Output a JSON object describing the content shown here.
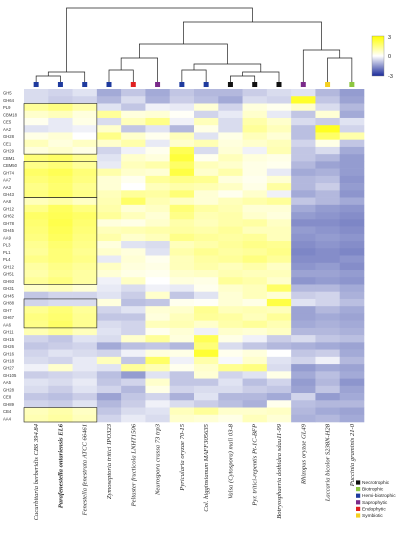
{
  "chart_data": {
    "type": "heatmap",
    "title": "",
    "xlabel": "",
    "ylabel": "",
    "color_scale": {
      "min": -3,
      "max": 3,
      "low_color": "#1a2a9a",
      "mid_color": "#ffffff",
      "high_color": "#ffff00"
    },
    "colorbar_ticks": [
      "3",
      "0",
      "-3"
    ],
    "rows": [
      "GH5",
      "GH64",
      "PL9",
      "CBM18",
      "CE5",
      "AA2",
      "GH28",
      "CE1",
      "GH29",
      "CBM1",
      "CBM50",
      "GH74",
      "AA7",
      "AA3",
      "GH43",
      "AA8",
      "GH12",
      "GH62",
      "GH78",
      "GH45",
      "AA9",
      "PL3",
      "PL1",
      "PL4",
      "GH12",
      "GH51",
      "GH93",
      "GH31",
      "GH45",
      "GH88",
      "GH7",
      "GH67",
      "AA6",
      "GH11",
      "GH15",
      "GH26",
      "GH16",
      "GH18",
      "GH27",
      "GH105",
      "AA5",
      "GH28",
      "CE8",
      "GH89",
      "CB4",
      "AA4"
    ],
    "columns": [
      {
        "name": "Cucurbitaria berberidis CBS 394.84",
        "color": "#1e3a9e"
      },
      {
        "name": "Parafenestella ontariensis EL6",
        "color": "#1e3a9e",
        "bold": true
      },
      {
        "name": "Fenestella fenestrata ATCC 66461",
        "color": "#1e3a9e"
      },
      {
        "name": "Zymoseptoria tritici IPO323",
        "color": "#1e3a9e"
      },
      {
        "name": "Peltaster fructicola LNHT1506",
        "color": "#e02020"
      },
      {
        "name": "Neurospora crassa 73 trp3",
        "color": "#7a2a8a"
      },
      {
        "name": "Pyricularia oryzae 70-15",
        "color": "#1e3a9e"
      },
      {
        "name": "Col. higginsianum MAFF305635",
        "color": "#1e3a9e"
      },
      {
        "name": "Valsa (Cytospora) mali 03-8",
        "color": "#111111"
      },
      {
        "name": "Pyr. tritici-repentis Pt-1C-BFP",
        "color": "#111111"
      },
      {
        "name": "Botryosphaeria dothidea sdau11-99",
        "color": "#111111"
      },
      {
        "name": "Rhizopus oryzae GL49",
        "color": "#7a2a8a"
      },
      {
        "name": "Laccaria bicolor S238N-H28",
        "color": "#f5d020"
      },
      {
        "name": "Puccinia graminis 21-0",
        "color": "#8cc63f"
      }
    ],
    "values": [
      [
        -0.5,
        -0.6,
        -0.4,
        -1.2,
        -0.8,
        -1.2,
        -0.8,
        -1.0,
        -1.0,
        -0.7,
        -0.5,
        -0.4,
        -1.0,
        -1.4
      ],
      [
        -0.5,
        -0.7,
        -0.6,
        -1.0,
        -0.5,
        -1.1,
        -0.7,
        -0.9,
        -1.2,
        -0.5,
        -0.6,
        2.5,
        -0.8,
        -1.3
      ],
      [
        1.2,
        1.5,
        1.0,
        -0.4,
        -0.8,
        -0.2,
        -0.3,
        0.5,
        -0.6,
        0.4,
        0.2,
        0.6,
        -0.5,
        -1.0
      ],
      [
        0.6,
        0.8,
        0.4,
        1.2,
        0.4,
        0.5,
        0.1,
        -0.6,
        -0.3,
        0.6,
        -0.3,
        -0.8,
        0.5,
        -1.2
      ],
      [
        0.2,
        -0.3,
        0.3,
        -0.5,
        0.8,
        1.4,
        -0.2,
        0.8,
        -0.5,
        1.0,
        0.6,
        -0.5,
        -0.7,
        -0.4
      ],
      [
        -0.4,
        -0.3,
        -0.2,
        0.6,
        -0.8,
        -0.4,
        -1.0,
        0.3,
        -0.5,
        1.2,
        0.8,
        -0.9,
        2.6,
        -0.6
      ],
      [
        0.3,
        0.5,
        0.0,
        1.4,
        0.6,
        0.2,
        0.8,
        -0.4,
        0.3,
        0.8,
        0.5,
        -0.9,
        1.8,
        1.0
      ],
      [
        0.8,
        0.4,
        0.7,
        0.6,
        1.0,
        -0.3,
        0.6,
        0.9,
        0.4,
        0.6,
        0.8,
        -0.6,
        0.3,
        -0.8
      ],
      [
        0.4,
        0.6,
        0.3,
        -0.6,
        -0.2,
        0.2,
        2.0,
        -0.5,
        0.5,
        -0.2,
        0.9,
        -0.8,
        -0.5,
        -1.2
      ],
      [
        1.6,
        1.8,
        1.3,
        -0.4,
        0.6,
        0.4,
        2.3,
        0.2,
        0.8,
        0.4,
        0.3,
        -0.8,
        -1.0,
        -1.4
      ],
      [
        1.4,
        1.6,
        1.2,
        -0.3,
        0.8,
        1.0,
        1.8,
        0.8,
        0.6,
        0.3,
        0.2,
        -1.0,
        -1.3,
        -1.4
      ],
      [
        1.8,
        2.0,
        1.6,
        1.0,
        0.6,
        0.5,
        2.2,
        0.6,
        1.0,
        0.3,
        -0.3,
        -1.2,
        -1.1,
        -1.4
      ],
      [
        1.6,
        1.8,
        1.5,
        0.5,
        0.2,
        1.2,
        1.4,
        1.3,
        0.4,
        0.2,
        0.5,
        -1.0,
        -0.9,
        -1.5
      ],
      [
        1.4,
        1.7,
        1.3,
        0.5,
        0.0,
        0.8,
        1.0,
        0.9,
        0.7,
        0.3,
        1.1,
        -1.0,
        -0.7,
        -1.4
      ],
      [
        1.5,
        1.8,
        1.4,
        0.8,
        1.2,
        1.1,
        1.6,
        0.5,
        0.2,
        0.6,
        -0.2,
        -1.2,
        -1.0,
        -1.5
      ],
      [
        0.8,
        1.0,
        0.7,
        0.9,
        1.8,
        0.9,
        0.7,
        0.5,
        0.8,
        1.0,
        1.2,
        -0.8,
        -1.0,
        -1.2
      ],
      [
        1.4,
        1.9,
        1.5,
        1.0,
        0.5,
        0.7,
        1.6,
        1.1,
        0.9,
        0.5,
        0.5,
        -1.2,
        -1.4,
        -1.5
      ],
      [
        1.8,
        2.0,
        1.8,
        1.2,
        0.8,
        0.5,
        1.4,
        0.9,
        1.0,
        0.6,
        0.4,
        -1.4,
        -1.5,
        -1.6
      ],
      [
        1.7,
        2.1,
        1.7,
        0.4,
        0.3,
        0.6,
        1.0,
        0.8,
        1.0,
        1.1,
        0.7,
        -1.6,
        -1.6,
        -1.7
      ],
      [
        1.6,
        2.0,
        1.6,
        0.8,
        0.9,
        1.0,
        1.1,
        1.0,
        1.2,
        0.8,
        0.8,
        -1.4,
        -1.5,
        -1.6
      ],
      [
        1.5,
        1.9,
        1.5,
        1.0,
        0.6,
        0.8,
        1.4,
        1.2,
        1.1,
        1.2,
        0.8,
        -1.5,
        -1.4,
        -1.5
      ],
      [
        1.3,
        1.7,
        1.4,
        0.4,
        -0.4,
        -0.5,
        0.8,
        1.0,
        1.2,
        1.4,
        1.3,
        -1.6,
        -1.5,
        -1.6
      ],
      [
        1.2,
        1.6,
        1.3,
        0.6,
        0.4,
        -0.4,
        1.0,
        1.3,
        1.1,
        1.2,
        1.4,
        -1.7,
        -1.6,
        -1.7
      ],
      [
        1.4,
        1.6,
        1.4,
        -0.3,
        0.5,
        0.2,
        0.8,
        1.1,
        1.2,
        1.5,
        1.2,
        -1.6,
        -1.6,
        -1.5
      ],
      [
        1.1,
        1.4,
        1.2,
        0.7,
        0.4,
        0.3,
        0.8,
        1.0,
        0.8,
        1.0,
        0.7,
        -1.5,
        -1.4,
        -1.6
      ],
      [
        1.0,
        1.3,
        1.1,
        0.5,
        0.3,
        0.2,
        0.6,
        0.7,
        0.9,
        0.8,
        0.8,
        -1.3,
        -1.3,
        -1.4
      ],
      [
        1.2,
        1.5,
        1.1,
        -0.2,
        0.7,
        0.0,
        0.4,
        0.3,
        1.2,
        1.0,
        0.6,
        -1.5,
        -1.4,
        -1.5
      ],
      [
        0.6,
        0.8,
        0.5,
        -0.3,
        -0.5,
        -0.2,
        -0.3,
        0.2,
        0.6,
        0.8,
        1.8,
        -1.0,
        -1.0,
        -1.2
      ],
      [
        -0.8,
        -0.6,
        -0.6,
        -0.4,
        -0.7,
        0.6,
        -0.8,
        -0.4,
        0.5,
        0.8,
        0.5,
        -0.7,
        -0.6,
        -1.1
      ],
      [
        -0.6,
        -0.5,
        -0.5,
        0.4,
        -0.9,
        -0.8,
        0.2,
        0.1,
        0.5,
        0.3,
        2.2,
        -0.4,
        -0.6,
        -0.9
      ],
      [
        1.3,
        1.6,
        1.2,
        -0.6,
        -0.4,
        0.5,
        0.6,
        1.3,
        0.8,
        0.9,
        0.8,
        -1.3,
        -1.0,
        -1.2
      ],
      [
        1.5,
        1.7,
        1.3,
        -0.8,
        -0.8,
        0.4,
        0.8,
        1.2,
        1.1,
        0.8,
        1.2,
        -1.3,
        -1.2,
        -1.3
      ],
      [
        1.4,
        1.8,
        1.3,
        -0.5,
        -0.6,
        0.8,
        0.9,
        0.6,
        1.0,
        1.2,
        0.9,
        -1.2,
        -1.1,
        -1.2
      ],
      [
        0.9,
        1.2,
        0.8,
        -0.4,
        -0.6,
        0.2,
        0.5,
        -0.2,
        0.6,
        0.5,
        0.7,
        -1.0,
        -1.0,
        -1.1
      ],
      [
        -0.6,
        -0.8,
        -0.4,
        -0.5,
        0.6,
        1.2,
        0.4,
        2.0,
        0.3,
        -0.2,
        -0.7,
        -0.5,
        -0.8,
        -0.9
      ],
      [
        -0.8,
        -0.7,
        -0.6,
        -1.2,
        -0.9,
        -0.8,
        -1.0,
        1.6,
        -0.5,
        -0.8,
        -1.0,
        -1.1,
        -1.2,
        -1.3
      ],
      [
        -0.6,
        -0.4,
        -0.5,
        -0.6,
        -0.2,
        0.4,
        0.3,
        2.4,
        0.2,
        0.4,
        0.0,
        -0.8,
        -0.7,
        -1.2
      ],
      [
        -0.5,
        -0.6,
        -0.3,
        0.8,
        -0.8,
        1.8,
        -0.2,
        1.0,
        -0.1,
        0.6,
        -0.4,
        -0.6,
        -0.2,
        -1.0
      ],
      [
        -0.2,
        0.6,
        -0.3,
        -0.4,
        1.2,
        0.9,
        0.2,
        0.6,
        1.3,
        1.5,
        -0.5,
        -1.4,
        -1.2,
        -1.3
      ],
      [
        -0.7,
        -0.6,
        -0.5,
        -0.9,
        -1.4,
        -0.4,
        -0.8,
        0.5,
        -0.6,
        -0.4,
        0.3,
        -1.2,
        -0.9,
        -1.2
      ],
      [
        -0.4,
        -0.5,
        -0.3,
        -0.8,
        -0.6,
        0.6,
        -0.8,
        -0.8,
        -0.4,
        -0.9,
        -0.6,
        -1.4,
        -1.0,
        -1.5
      ],
      [
        -0.5,
        -0.7,
        -0.4,
        -0.6,
        -1.0,
        0.3,
        -0.6,
        -0.5,
        -0.5,
        -0.7,
        -0.8,
        -1.3,
        -0.8,
        -1.3
      ],
      [
        -0.8,
        -0.9,
        -0.7,
        -1.3,
        -0.8,
        -0.6,
        -1.1,
        -0.4,
        -1.0,
        -1.0,
        -1.2,
        -0.6,
        -1.4,
        -1.2
      ],
      [
        -0.6,
        -0.7,
        -0.4,
        -1.0,
        -0.7,
        -0.2,
        -0.5,
        -0.7,
        -0.9,
        -1.1,
        0.2,
        -0.9,
        -1.0,
        -1.0
      ],
      [
        0.8,
        1.0,
        0.7,
        -0.8,
        -0.5,
        -0.4,
        0.8,
        1.2,
        0.6,
        0.6,
        0.7,
        -1.0,
        -1.2,
        -1.3
      ],
      [
        0.9,
        1.1,
        0.8,
        -0.6,
        -0.3,
        -0.5,
        0.6,
        0.5,
        0.3,
        0.8,
        0.5,
        -1.1,
        -1.0,
        -1.2
      ]
    ],
    "row_groups": [
      [
        2,
        8
      ],
      [
        10,
        14
      ],
      [
        15,
        26
      ],
      [
        29,
        32
      ],
      [
        44,
        45
      ]
    ],
    "legend": {
      "position": "bottom-right",
      "entries": [
        {
          "label": "Necrotrophic",
          "color": "#111111"
        },
        {
          "label": "Biotrophic",
          "color": "#8cc63f"
        },
        {
          "label": "Hemi-biotrophic",
          "color": "#1e3a9e"
        },
        {
          "label": "Saprophytic",
          "color": "#7a2a8a"
        },
        {
          "label": "Endophytic",
          "color": "#e02020"
        },
        {
          "label": "Symbiotic",
          "color": "#f5d020"
        }
      ]
    }
  }
}
